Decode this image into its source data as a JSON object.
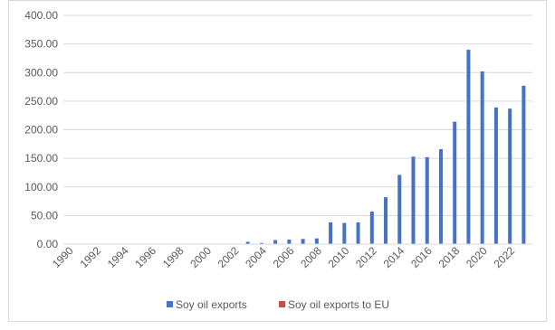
{
  "chart_data": {
    "type": "bar",
    "title": "",
    "xlabel": "",
    "ylabel": "",
    "ylim": [
      0,
      400
    ],
    "y_ticks": [
      "0.00",
      "50.00",
      "100.00",
      "150.00",
      "200.00",
      "250.00",
      "300.00",
      "350.00",
      "400.00"
    ],
    "grid": "horizontal",
    "legend_position": "bottom",
    "colors": {
      "series_1": "#4472c4",
      "series_2": "#c0504d",
      "grid": "#d9d9d9",
      "text": "#595959"
    },
    "categories": [
      1990,
      1991,
      1992,
      1993,
      1994,
      1995,
      1996,
      1997,
      1998,
      1999,
      2000,
      2001,
      2002,
      2003,
      2004,
      2005,
      2006,
      2007,
      2008,
      2009,
      2010,
      2011,
      2012,
      2013,
      2014,
      2015,
      2016,
      2017,
      2018,
      2019,
      2020,
      2021,
      2022,
      2023
    ],
    "x_tick_labels": [
      "1990",
      "1992",
      "1994",
      "1996",
      "1998",
      "2000",
      "2002",
      "2004",
      "2006",
      "2008",
      "2010",
      "2012",
      "2014",
      "2016",
      "2018",
      "2020",
      "2022"
    ],
    "series": [
      {
        "name": "Soy oil exports",
        "values": [
          0,
          0,
          0,
          0,
          0,
          0,
          0,
          0,
          0,
          0,
          0,
          0,
          0,
          4,
          2,
          7,
          8,
          9,
          10,
          38,
          37,
          38,
          57,
          82,
          121,
          153,
          152,
          166,
          214,
          340,
          302,
          239,
          237,
          277
        ]
      },
      {
        "name": "Soy oil exports to EU",
        "values": [
          0,
          0,
          0,
          0,
          0,
          0,
          0,
          0,
          0,
          0,
          0,
          0,
          0,
          0,
          0,
          0,
          0,
          0,
          0,
          0,
          0,
          0,
          0,
          0,
          0,
          0,
          0,
          0,
          0,
          0,
          0,
          0,
          0,
          0
        ]
      }
    ]
  }
}
